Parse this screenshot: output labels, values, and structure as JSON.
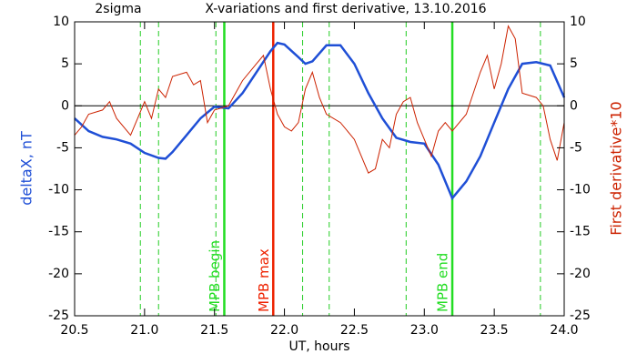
{
  "chart_data": {
    "type": "line",
    "title": "X-variations and first derivative, 13.10.2016",
    "subtitle": "2sigma",
    "xlabel": "UT, hours",
    "ylabel": "deltaX, nT",
    "y2label": "First derivative*10",
    "xlim": [
      20.5,
      24.0
    ],
    "xticks": [
      20.5,
      {
        "value": 21,
        "label": "21.0"
      },
      21.5,
      {
        "value": 22,
        "label": "22.0"
      },
      22.5,
      {
        "value": 23,
        "label": "23.0"
      },
      23.5,
      {
        "value": 24,
        "label": "24.0"
      }
    ],
    "ylim": [
      -25,
      10
    ],
    "yticks": [
      10,
      5,
      0,
      -5,
      -10,
      -15,
      -20,
      -25
    ],
    "y2lim": [
      -25,
      10
    ],
    "y2ticks": [
      10,
      5,
      0,
      -5,
      -10,
      -15,
      -20,
      -25
    ],
    "zero_line": 0,
    "series": [
      {
        "name": "deltaX, nT",
        "color": "#1f4fd6",
        "axis": "y",
        "x": [
          20.5,
          20.6,
          20.7,
          20.8,
          20.9,
          21.0,
          21.1,
          21.15,
          21.2,
          21.3,
          21.4,
          21.5,
          21.6,
          21.7,
          21.8,
          21.9,
          21.95,
          22.0,
          22.1,
          22.15,
          22.2,
          22.3,
          22.4,
          22.5,
          22.6,
          22.7,
          22.8,
          22.9,
          23.0,
          23.1,
          23.2,
          23.3,
          23.4,
          23.5,
          23.6,
          23.7,
          23.8,
          23.9,
          24.0
        ],
        "values": [
          -1.5,
          -3,
          -3.7,
          -4,
          -4.5,
          -5.6,
          -6.2,
          -6.3,
          -5.5,
          -3.5,
          -1.5,
          -0.1,
          -0.3,
          1.5,
          4,
          6.5,
          7.5,
          7.3,
          5.8,
          5,
          5.3,
          7.2,
          7.2,
          5,
          1.5,
          -1.5,
          -3.8,
          -4.3,
          -4.5,
          -7,
          -11,
          -9,
          -6,
          -2,
          2,
          5,
          5.2,
          4.8,
          1
        ]
      },
      {
        "name": "First derivative*10",
        "color": "#cc2200",
        "axis": "y2",
        "x": [
          20.5,
          20.55,
          20.6,
          20.7,
          20.75,
          20.8,
          20.9,
          21.0,
          21.05,
          21.1,
          21.15,
          21.2,
          21.3,
          21.35,
          21.4,
          21.45,
          21.5,
          21.6,
          21.7,
          21.8,
          21.85,
          21.9,
          21.95,
          22.0,
          22.05,
          22.1,
          22.15,
          22.2,
          22.25,
          22.3,
          22.4,
          22.5,
          22.55,
          22.6,
          22.65,
          22.7,
          22.75,
          22.8,
          22.85,
          22.9,
          22.95,
          23.0,
          23.05,
          23.1,
          23.15,
          23.2,
          23.3,
          23.4,
          23.45,
          23.5,
          23.55,
          23.6,
          23.65,
          23.7,
          23.8,
          23.85,
          23.9,
          23.95,
          24.0
        ],
        "values": [
          -3.5,
          -2.5,
          -1,
          -0.5,
          0.5,
          -1.5,
          -3.5,
          0.5,
          -1.5,
          2,
          1,
          3.5,
          4,
          2.5,
          3,
          -2,
          -0.5,
          0,
          3,
          5,
          6,
          2,
          -1,
          -2.5,
          -3,
          -2,
          2,
          4,
          1,
          -1,
          -2,
          -4,
          -6,
          -8,
          -7.5,
          -4,
          -5,
          -1,
          0.5,
          1,
          -2,
          -4,
          -6,
          -3,
          -2,
          -3,
          -1,
          4,
          6,
          2,
          5,
          9.5,
          8,
          1.5,
          1,
          0,
          -4,
          -6.5,
          -2
        ]
      }
    ],
    "vlines": [
      {
        "x": 20.97,
        "color": "#22cc22",
        "style": "dashed"
      },
      {
        "x": 21.1,
        "color": "#22cc22",
        "style": "dashed"
      },
      {
        "x": 21.51,
        "color": "#22cc22",
        "style": "dashed"
      },
      {
        "x": 21.57,
        "color": "#22dd22",
        "style": "solid",
        "label": "MPB begin"
      },
      {
        "x": 21.92,
        "color": "#ee2200",
        "style": "solid",
        "label": "MPB max"
      },
      {
        "x": 22.13,
        "color": "#22cc22",
        "style": "dashed"
      },
      {
        "x": 22.32,
        "color": "#22cc22",
        "style": "dashed"
      },
      {
        "x": 22.87,
        "color": "#22cc22",
        "style": "dashed"
      },
      {
        "x": 23.2,
        "color": "#22dd22",
        "style": "solid",
        "label": "MPB end"
      },
      {
        "x": 23.83,
        "color": "#22cc22",
        "style": "dashed"
      }
    ]
  }
}
